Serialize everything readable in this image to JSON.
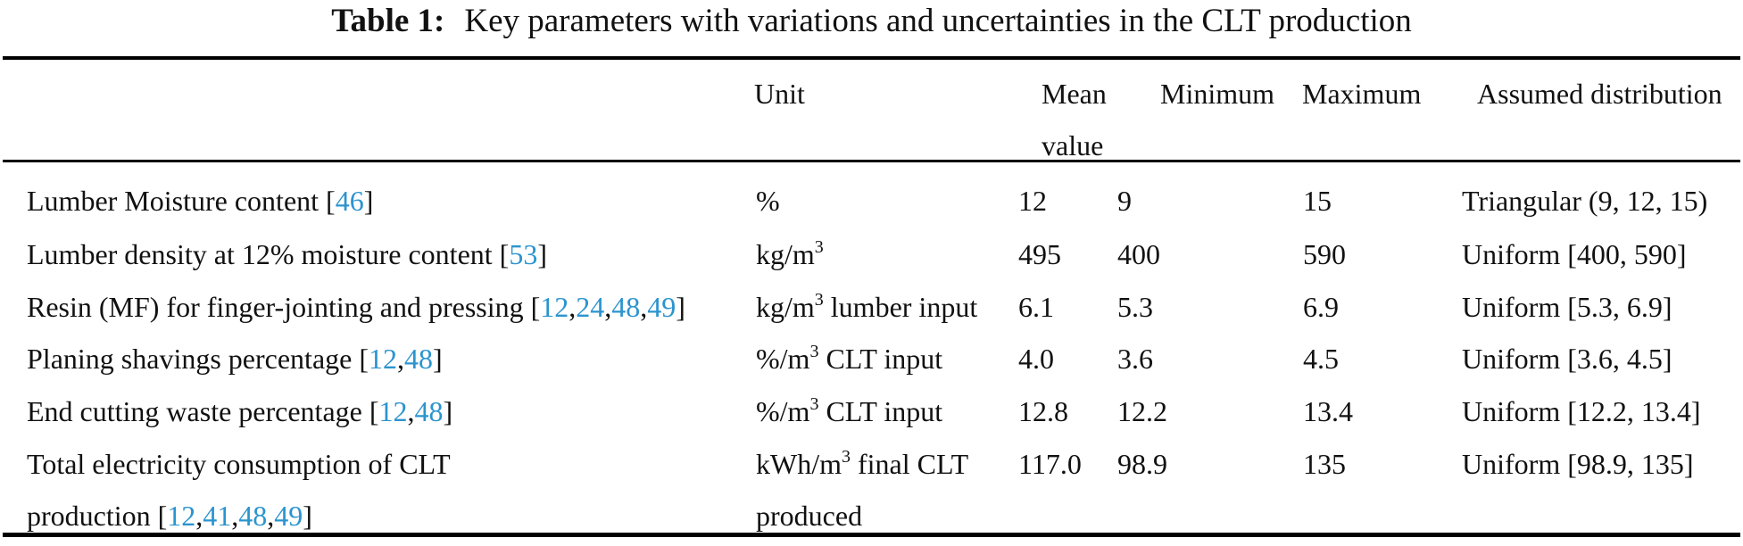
{
  "title": {
    "label": "Table 1:",
    "text": "Key parameters with variations and uncertainties in the CLT production"
  },
  "header": {
    "unit": "Unit",
    "mean_line1": "Mean",
    "mean_line2": "value",
    "minimum": "Minimum",
    "maximum": "Maximum",
    "distribution": "Assumed distribution"
  },
  "link_color": "#2b94cf",
  "text_color": "#111111",
  "rows": [
    {
      "name": [
        {
          "t": "Lumber Moisture content "
        },
        {
          "ref": "46"
        }
      ],
      "unit": [
        {
          "t": "%"
        }
      ],
      "mean": "12",
      "min": "9",
      "max": "15",
      "dist": "Triangular (9, 12, 15)"
    },
    {
      "name": [
        {
          "t": "Lumber density at 12% moisture content "
        },
        {
          "ref": "53"
        }
      ],
      "unit": [
        {
          "t": "kg/m"
        },
        {
          "sup": "3"
        }
      ],
      "mean": "495",
      "min": "400",
      "max": "590",
      "dist": "Uniform [400, 590]"
    },
    {
      "name": [
        {
          "t": "Resin (MF) for finger-jointing and pressing "
        },
        {
          "ref": "12,24,48,49"
        }
      ],
      "unit": [
        {
          "t": "kg/m"
        },
        {
          "sup": "3"
        },
        {
          "t": " lumber input"
        }
      ],
      "mean": "6.1",
      "min": "5.3",
      "max": "6.9",
      "dist": "Uniform [5.3, 6.9]"
    },
    {
      "name": [
        {
          "t": "Planing shavings percentage "
        },
        {
          "ref": "12,48"
        }
      ],
      "unit": [
        {
          "t": "%/m"
        },
        {
          "sup": "3"
        },
        {
          "t": " CLT input"
        }
      ],
      "mean": "4.0",
      "min": "3.6",
      "max": "4.5",
      "dist": "Uniform [3.6, 4.5]"
    },
    {
      "name": [
        {
          "t": "End cutting waste percentage "
        },
        {
          "ref": "12,48"
        }
      ],
      "unit": [
        {
          "t": "%/m"
        },
        {
          "sup": "3"
        },
        {
          "t": " CLT input"
        }
      ],
      "mean": "12.8",
      "min": "12.2",
      "max": "13.4",
      "dist": "Uniform [12.2, 13.4]"
    },
    {
      "name": [
        {
          "t": "Total electricity consumption of CLT"
        },
        {
          "br": true
        },
        {
          "t": "production "
        },
        {
          "ref": "12,41,48,49"
        }
      ],
      "unit": [
        {
          "t": "kWh/m"
        },
        {
          "sup": "3"
        },
        {
          "t": " final CLT"
        },
        {
          "br": true
        },
        {
          "t": "produced"
        }
      ],
      "mean": "117.0",
      "min": "98.9",
      "max": "135",
      "dist": "Uniform [98.9, 135]"
    }
  ]
}
